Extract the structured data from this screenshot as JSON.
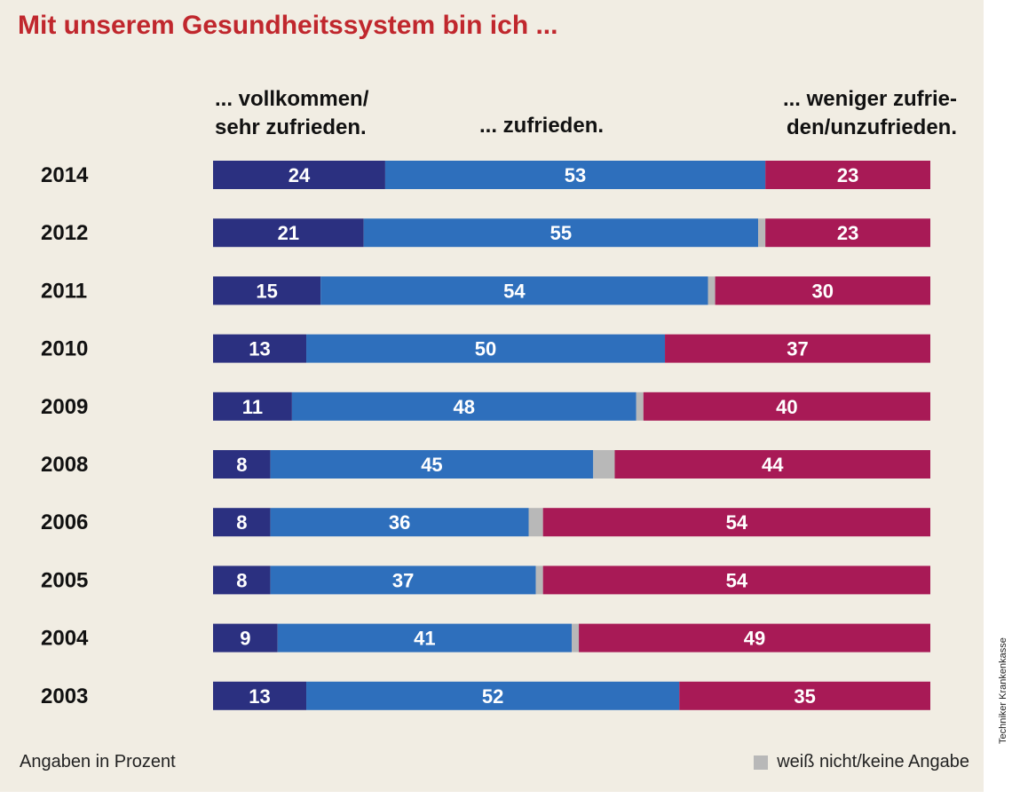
{
  "colors": {
    "very_satisfied": "#2b3080",
    "satisfied": "#2e6fbc",
    "unknown": "#b8b8b8",
    "less_satisfied": "#a81a56",
    "title": "#c0272d",
    "background": "#f1ede3"
  },
  "chart_data": {
    "type": "bar",
    "orientation": "horizontal-stacked",
    "title": "Mit unserem Gesundheitssystem bin ich ...",
    "categories": [
      "2014",
      "2012",
      "2011",
      "2010",
      "2009",
      "2008",
      "2006",
      "2005",
      "2004",
      "2003"
    ],
    "series": [
      {
        "name": "... vollkommen/ sehr zufrieden.",
        "values": [
          24,
          21,
          15,
          13,
          11,
          8,
          8,
          8,
          9,
          13
        ]
      },
      {
        "name": "... zufrieden.",
        "values": [
          53,
          55,
          54,
          50,
          48,
          45,
          36,
          37,
          41,
          52
        ]
      },
      {
        "name": "weiß nicht/keine Angabe",
        "values": [
          0,
          1,
          1,
          0,
          1,
          3,
          2,
          1,
          1,
          0
        ]
      },
      {
        "name": "... weniger zufrie- den/unzufrieden.",
        "values": [
          23,
          23,
          30,
          37,
          40,
          44,
          54,
          54,
          49,
          35
        ]
      }
    ],
    "column_headers": [
      [
        "... vollkommen/",
        "sehr zufrieden."
      ],
      [
        "... zufrieden."
      ],
      [
        "... weniger zufrie-",
        "den/unzufrieden."
      ]
    ],
    "xlim": [
      0,
      100
    ],
    "unit_note": "Angaben in Prozent",
    "legend": "weiß nicht/keine Angabe",
    "legend_position": "bottom-right",
    "source": "Techniker Krankenkasse"
  }
}
